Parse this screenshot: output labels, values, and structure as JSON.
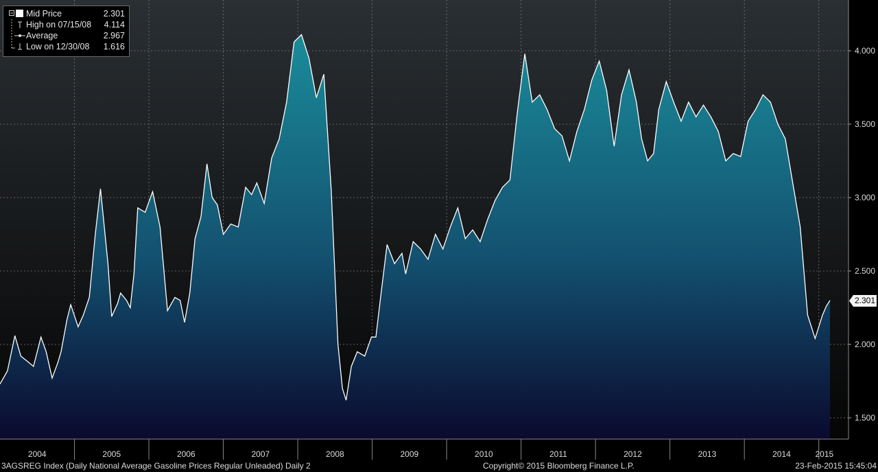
{
  "legend": {
    "mid_price_label": "Mid Price",
    "mid_price_value": "2.301",
    "high_label": "High on 07/15/08",
    "high_value": "4.114",
    "average_label": "Average",
    "average_value": "2.967",
    "low_label": "Low on 12/30/08",
    "low_value": "1.616"
  },
  "footer": {
    "ticker": "3AGSREG Index (Daily National Average Gasoline Prices Regular Unleaded)  Daily 2",
    "copyright": "Copyright© 2015 Bloomberg Finance L.P.",
    "timestamp": "23-Feb-2015 15:45:04"
  },
  "last_value_label": "2.301",
  "colors": {
    "line": "#ffffff",
    "fill_top": "#1a8a99",
    "fill_bottom": "#0a0a2e",
    "background_top": "#2a2f33",
    "background_bottom": "#050505",
    "grid": "#7a7a7a"
  },
  "chart_data": {
    "type": "area",
    "title": "",
    "xlabel": "",
    "ylabel": "",
    "ylim": [
      1.35,
      4.3
    ],
    "xlim": [
      2004.0,
      2015.15
    ],
    "y_ticks": [
      "1.500",
      "2.000",
      "2.500",
      "3.000",
      "3.500",
      "4.000"
    ],
    "x_tick_labels": [
      "2004",
      "2005",
      "2006",
      "2007",
      "2008",
      "2009",
      "2010",
      "2011",
      "2012",
      "2013",
      "2014",
      "2015"
    ],
    "grid": true,
    "series": [
      {
        "name": "Mid Price",
        "x": [
          2004.0,
          2004.1,
          2004.2,
          2004.28,
          2004.38,
          2004.45,
          2004.55,
          2004.62,
          2004.7,
          2004.78,
          2004.82,
          2004.9,
          2004.95,
          2005.05,
          2005.12,
          2005.2,
          2005.28,
          2005.35,
          2005.45,
          2005.5,
          2005.58,
          2005.62,
          2005.7,
          2005.75,
          2005.8,
          2005.85,
          2005.95,
          2006.05,
          2006.15,
          2006.25,
          2006.35,
          2006.42,
          2006.48,
          2006.55,
          2006.62,
          2006.7,
          2006.78,
          2006.85,
          2006.92,
          2007.0,
          2007.1,
          2007.2,
          2007.3,
          2007.38,
          2007.45,
          2007.55,
          2007.65,
          2007.75,
          2007.85,
          2007.95,
          2008.05,
          2008.15,
          2008.25,
          2008.35,
          2008.45,
          2008.54,
          2008.6,
          2008.65,
          2008.72,
          2008.8,
          2008.9,
          2008.99,
          2009.05,
          2009.12,
          2009.2,
          2009.3,
          2009.4,
          2009.45,
          2009.55,
          2009.65,
          2009.75,
          2009.85,
          2009.95,
          2010.05,
          2010.15,
          2010.25,
          2010.35,
          2010.45,
          2010.55,
          2010.65,
          2010.75,
          2010.85,
          2010.95,
          2011.05,
          2011.15,
          2011.25,
          2011.35,
          2011.45,
          2011.55,
          2011.65,
          2011.75,
          2011.85,
          2011.95,
          2012.05,
          2012.15,
          2012.25,
          2012.35,
          2012.45,
          2012.55,
          2012.62,
          2012.7,
          2012.78,
          2012.85,
          2012.95,
          2013.05,
          2013.15,
          2013.25,
          2013.35,
          2013.45,
          2013.55,
          2013.65,
          2013.75,
          2013.85,
          2013.95,
          2014.05,
          2014.15,
          2014.25,
          2014.35,
          2014.45,
          2014.55,
          2014.65,
          2014.75,
          2014.85,
          2014.95,
          2015.0,
          2015.05,
          2015.1,
          2015.15
        ],
        "values": [
          1.73,
          1.82,
          2.06,
          1.92,
          1.88,
          1.85,
          2.05,
          1.95,
          1.77,
          1.88,
          1.95,
          2.17,
          2.27,
          2.12,
          2.2,
          2.32,
          2.75,
          3.06,
          2.55,
          2.19,
          2.28,
          2.35,
          2.3,
          2.25,
          2.48,
          2.93,
          2.9,
          3.04,
          2.8,
          2.23,
          2.32,
          2.3,
          2.15,
          2.35,
          2.72,
          2.87,
          3.23,
          3.0,
          2.95,
          2.75,
          2.82,
          2.8,
          3.07,
          3.02,
          3.1,
          2.96,
          3.27,
          3.4,
          3.65,
          4.06,
          4.11,
          3.95,
          3.68,
          3.84,
          3.05,
          2.0,
          1.7,
          1.62,
          1.85,
          1.95,
          1.92,
          2.05,
          2.05,
          2.35,
          2.68,
          2.55,
          2.62,
          2.48,
          2.7,
          2.65,
          2.58,
          2.75,
          2.65,
          2.8,
          2.93,
          2.72,
          2.78,
          2.7,
          2.85,
          2.98,
          3.07,
          3.12,
          3.58,
          3.98,
          3.65,
          3.7,
          3.6,
          3.47,
          3.42,
          3.25,
          3.45,
          3.6,
          3.8,
          3.93,
          3.73,
          3.35,
          3.7,
          3.87,
          3.65,
          3.4,
          3.25,
          3.3,
          3.6,
          3.79,
          3.65,
          3.52,
          3.65,
          3.55,
          3.63,
          3.55,
          3.45,
          3.25,
          3.3,
          3.28,
          3.52,
          3.6,
          3.7,
          3.65,
          3.5,
          3.4,
          3.1,
          2.8,
          2.2,
          2.04,
          2.12,
          2.2,
          2.26,
          2.3
        ]
      }
    ],
    "annotations": {
      "high": {
        "date": "07/15/08",
        "value": 4.114
      },
      "low": {
        "date": "12/30/08",
        "value": 1.616
      },
      "average": 2.967,
      "last": 2.301
    }
  }
}
